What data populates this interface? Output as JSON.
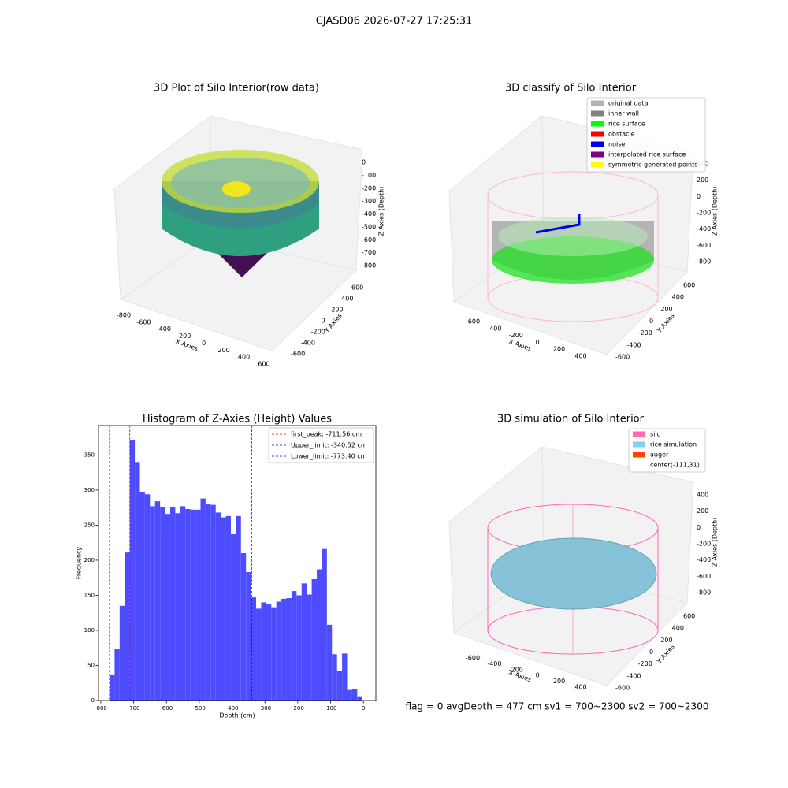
{
  "title": "CJASD06 2026-07-27 17:25:31",
  "status_text": "flag = 0     avgDepth = 477 cm  sv1 = 700~2300  sv2 = 700~2300",
  "chart_data": [
    {
      "type": "scatter3d",
      "title": "3D Plot of Silo Interior(row data)",
      "xlabel": "X Axies",
      "ylabel": "Y Axies",
      "zlabel": "Z Axies (Depth)",
      "xticks": [
        -800,
        -600,
        -400,
        -200,
        0,
        200,
        400,
        600
      ],
      "yticks": [
        -600,
        -400,
        -200,
        0,
        200,
        400,
        600
      ],
      "zticks": [
        0,
        -100,
        -200,
        -300,
        -400,
        -500,
        -600,
        -700,
        -800
      ]
    },
    {
      "type": "scatter3d",
      "title": "3D classify of Silo Interior",
      "xlabel": "X Axies",
      "ylabel": "Y Axies",
      "zlabel": "Z Axies (Depth)",
      "xticks": [
        -600,
        -400,
        -200,
        0,
        200,
        400
      ],
      "yticks": [
        -600,
        -400,
        -200,
        0,
        200,
        400,
        600
      ],
      "zticks": [
        400,
        200,
        0,
        -200,
        -400,
        -600,
        -800
      ],
      "series": [
        {
          "name": "original data",
          "color": "#b3b3b3"
        },
        {
          "name": "inner wall",
          "color": "#808080"
        },
        {
          "name": "rice surface",
          "color": "#00ff00"
        },
        {
          "name": "obstacle",
          "color": "#ff0000"
        },
        {
          "name": "noise",
          "color": "#0000ee"
        },
        {
          "name": "interpolated rice surface",
          "color": "#800080"
        },
        {
          "name": "symmetric generated points",
          "color": "#ffff00"
        }
      ]
    },
    {
      "type": "histogram",
      "title": "Histogram of Z-Axies (Height) Values",
      "xlabel": "Depth (cm)",
      "ylabel": "Frequency",
      "color": "#4d4dff",
      "bins": [
        -773.4,
        -758.0,
        -742.6,
        -727.2,
        -711.8,
        -696.4,
        -681.0,
        -665.6,
        -650.2,
        -634.8,
        -619.4,
        -604.0,
        -588.6,
        -573.2,
        -557.8,
        -542.4,
        -527.0,
        -511.6,
        -496.2,
        -480.8,
        -465.4,
        -450.0,
        -434.6,
        -419.2,
        -403.8,
        -388.4,
        -373.0,
        -357.6,
        -342.2,
        -326.8,
        -311.4,
        -296.0,
        -280.6,
        -265.2,
        -249.8,
        -234.4,
        -219.0,
        -203.6,
        -188.2,
        -172.8,
        -157.4,
        -142.0,
        -126.6,
        -111.2,
        -95.8,
        -80.4,
        -65.0,
        -49.6,
        -34.2,
        -18.8,
        -3.4
      ],
      "values": [
        37,
        73,
        135,
        211,
        371,
        340,
        297,
        294,
        277,
        284,
        276,
        266,
        276,
        267,
        277,
        273,
        272,
        272,
        288,
        280,
        279,
        268,
        261,
        263,
        237,
        263,
        210,
        183,
        147,
        131,
        140,
        137,
        133,
        141,
        145,
        146,
        156,
        150,
        167,
        151,
        173,
        187,
        216,
        108,
        66,
        42,
        67,
        15,
        16,
        6
      ],
      "xlim": [
        -807,
        38
      ],
      "ylim": [
        0,
        392
      ],
      "xticks": [
        -800,
        -700,
        -600,
        -500,
        -400,
        -300,
        -200,
        -100,
        0
      ],
      "yticks": [
        0,
        50,
        100,
        150,
        200,
        250,
        300,
        350
      ],
      "lines": [
        {
          "name": "first_peak: -711.56 cm",
          "value": -711.56,
          "color": "#ff0000"
        },
        {
          "name": "Upper_limit: -340.52 cm",
          "value": -340.52,
          "color": "#0000ff"
        },
        {
          "name": "Lower_limit: -773.40 cm",
          "value": -773.4,
          "color": "#0000ff"
        }
      ]
    },
    {
      "type": "surface3d",
      "title": "3D simulation of Silo Interior",
      "xlabel": "X Axies",
      "ylabel": "Y Axies",
      "zlabel": "Z Axies (Depth)",
      "xticks": [
        -600,
        -400,
        -200,
        0,
        200,
        400
      ],
      "yticks": [
        -600,
        -400,
        -200,
        0,
        200,
        400,
        600
      ],
      "zticks": [
        400,
        200,
        0,
        -200,
        -400,
        -600,
        -800
      ],
      "series": [
        {
          "name": "silo",
          "color": "#ff69b4"
        },
        {
          "name": "rice simulation",
          "color": "#87ceeb"
        },
        {
          "name": "auger",
          "color": "#ff4500"
        },
        {
          "name": "center(-111,31)"
        }
      ]
    }
  ]
}
